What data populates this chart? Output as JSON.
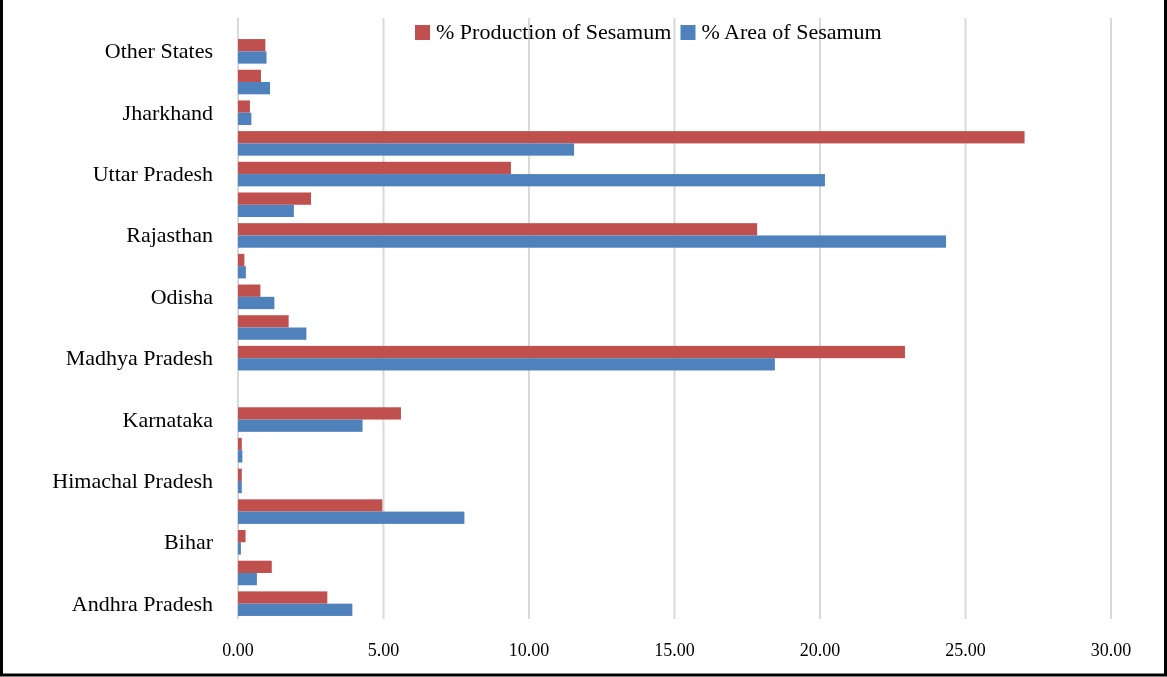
{
  "chart_data": {
    "type": "bar",
    "orientation": "horizontal",
    "categories": [
      "Other States",
      null,
      "Jharkhand",
      null,
      "Uttar Pradesh",
      null,
      "Rajasthan",
      null,
      "Odisha",
      null,
      "Madhya Pradesh",
      null,
      "Karnataka",
      null,
      "Himachal Pradesh",
      null,
      "Bihar",
      null,
      "Andhra Pradesh"
    ],
    "series": [
      {
        "name": "% Production of Sesamum",
        "color": "#c0504d",
        "values": [
          0.94,
          0.79,
          0.41,
          27.03,
          9.38,
          2.51,
          17.84,
          0.22,
          0.77,
          1.74,
          22.92,
          0,
          5.6,
          0.13,
          0.13,
          4.96,
          0.26,
          1.16,
          3.07
        ]
      },
      {
        "name": "% Area of Sesamum",
        "color": "#4f81bd",
        "values": [
          0.98,
          1.1,
          0.46,
          11.55,
          20.17,
          1.92,
          24.33,
          0.27,
          1.25,
          2.35,
          18.45,
          0,
          4.28,
          0.15,
          0.13,
          7.78,
          0.1,
          0.65,
          3.93
        ]
      }
    ],
    "xlim": [
      0,
      30
    ],
    "xticks": [
      {
        "value": 0,
        "label": "0.00"
      },
      {
        "value": 5,
        "label": "5.00"
      },
      {
        "value": 10,
        "label": "10.00"
      },
      {
        "value": 15,
        "label": "15.00"
      },
      {
        "value": 20,
        "label": "20.00"
      },
      {
        "value": 25,
        "label": "25.00"
      },
      {
        "value": 30,
        "label": "30.00"
      }
    ],
    "grid": "x",
    "legend": "top"
  }
}
